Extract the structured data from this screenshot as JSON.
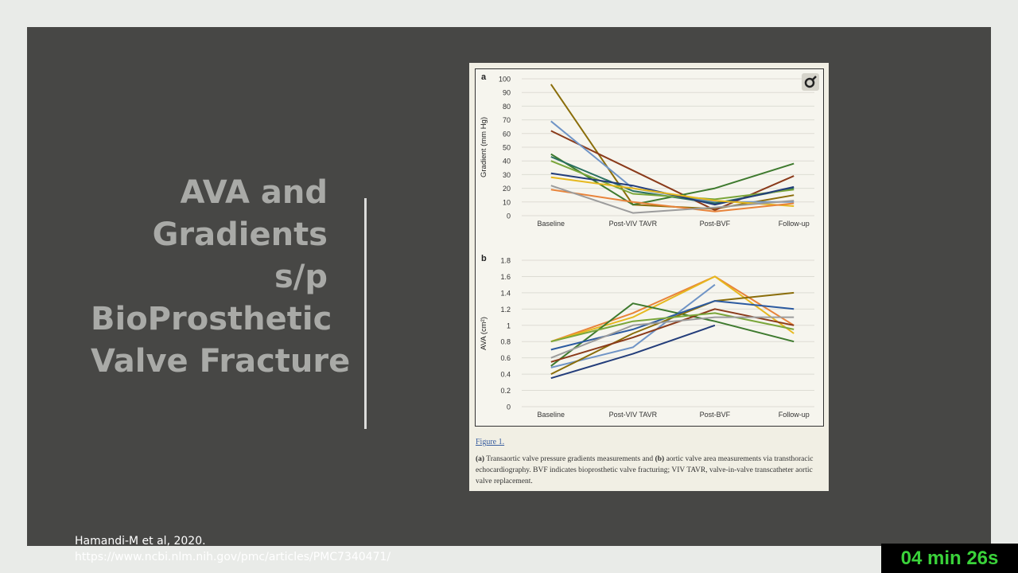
{
  "slide": {
    "title_lines": [
      "AVA and",
      "Gradients",
      "s/p",
      "BioProsthetic",
      "Valve Fracture"
    ],
    "citation": [
      "Hamandi-M et al, 2020.",
      "https://www.ncbi.nlm.nih.gov/pmc/articles/PMC7340471/"
    ]
  },
  "figure": {
    "link": "Figure 1.",
    "caption_a_label": "(a)",
    "caption_part1": " Transaortic valve pressure gradients measurements and ",
    "caption_b_label": "(b)",
    "caption_part2": " aortic valve area measurements via transthoracic echocardiography. BVF indicates bioprosthetic valve fracturing; VIV TAVR, valve-in-valve transcatheter aortic valve replacement.",
    "magnifier_icon": "magnifier-icon"
  },
  "timer": "04 min 26s",
  "chart_data": [
    {
      "type": "line",
      "panel": "a",
      "categories": [
        "Baseline",
        "Post-VIV TAVR",
        "Post-BVF",
        "Follow-up"
      ],
      "ylabel": "Gradient (mm Hg)",
      "ylim": [
        0,
        100
      ],
      "yticks": [
        0,
        10,
        20,
        30,
        40,
        50,
        60,
        70,
        80,
        90,
        100
      ],
      "grid": true,
      "series": [
        {
          "color": "#8a6d0a",
          "values": [
            96,
            8,
            5,
            15
          ]
        },
        {
          "color": "#8a3a1a",
          "values": [
            62,
            33,
            4,
            29
          ]
        },
        {
          "color": "#6f94c6",
          "values": [
            69,
            20,
            10,
            10
          ]
        },
        {
          "color": "#3e7a2e",
          "values": [
            45,
            8,
            20,
            38
          ]
        },
        {
          "color": "#2a7060",
          "values": [
            43,
            18,
            9,
            20
          ]
        },
        {
          "color": "#7aa63a",
          "values": [
            40,
            16,
            12,
            19
          ]
        },
        {
          "color": "#233d7a",
          "values": [
            31,
            22,
            8,
            21
          ]
        },
        {
          "color": "#e6b81e",
          "values": [
            28,
            20,
            11,
            7
          ]
        },
        {
          "color": "#e8833a",
          "values": [
            19,
            10,
            3,
            9
          ]
        },
        {
          "color": "#9c9c9c",
          "values": [
            22,
            2,
            6,
            11
          ]
        }
      ]
    },
    {
      "type": "line",
      "panel": "b",
      "categories": [
        "Baseline",
        "Post-VIV TAVR",
        "Post-BVF",
        "Follow-up"
      ],
      "ylabel": "AVA (cm²)",
      "ylim": [
        0,
        1.8
      ],
      "yticks": [
        0,
        0.2,
        0.4,
        0.6,
        0.8,
        1,
        1.2,
        1.4,
        1.6,
        1.8
      ],
      "grid": true,
      "series": [
        {
          "color": "#e8833a",
          "values": [
            0.8,
            1.15,
            1.6,
            1.0
          ]
        },
        {
          "color": "#e6b81e",
          "values": [
            0.8,
            1.1,
            1.6,
            0.9
          ]
        },
        {
          "color": "#6f94c6",
          "values": [
            0.48,
            0.73,
            1.5,
            null
          ]
        },
        {
          "color": "#3e7a2e",
          "values": [
            0.5,
            1.27,
            1.05,
            0.8
          ]
        },
        {
          "color": "#8a6d0a",
          "values": [
            0.4,
            0.9,
            1.3,
            1.4
          ]
        },
        {
          "color": "#8a3a1a",
          "values": [
            0.55,
            0.85,
            1.2,
            1.0
          ]
        },
        {
          "color": "#2b5aa0",
          "values": [
            0.7,
            0.95,
            1.3,
            1.2
          ]
        },
        {
          "color": "#7aa63a",
          "values": [
            0.8,
            1.05,
            1.15,
            0.95
          ]
        },
        {
          "color": "#9c9c9c",
          "values": [
            0.6,
            1.0,
            1.1,
            1.1
          ]
        },
        {
          "color": "#233d7a",
          "values": [
            0.35,
            0.65,
            1.0,
            null
          ]
        }
      ]
    }
  ]
}
